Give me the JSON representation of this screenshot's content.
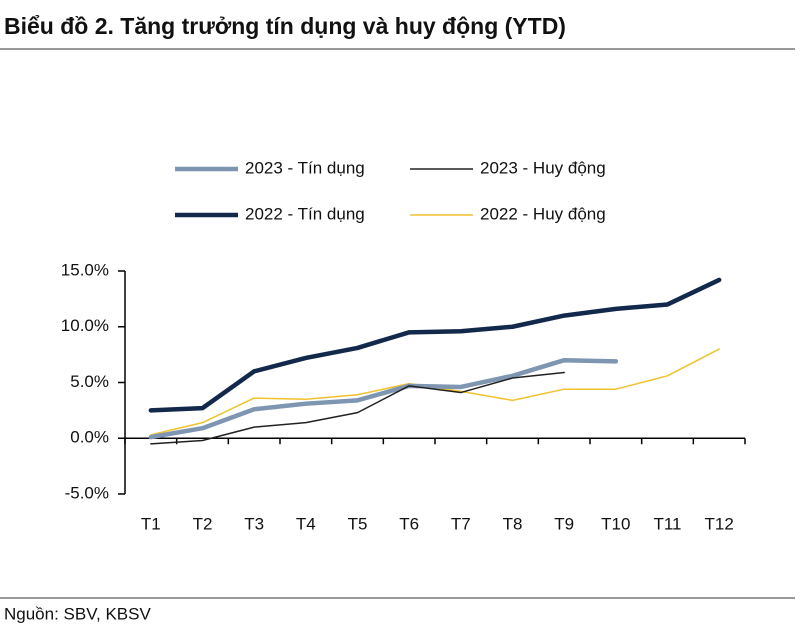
{
  "chart_data": {
    "type": "line",
    "title": "Biểu đồ 2. Tăng trưởng tín dụng và huy động (YTD)",
    "source": "Nguồn: SBV, KBSV",
    "categories": [
      "T1",
      "T2",
      "T3",
      "T4",
      "T5",
      "T6",
      "T7",
      "T8",
      "T9",
      "T10",
      "T11",
      "T12"
    ],
    "series": [
      {
        "name": "2023 - Tín dụng",
        "color": "#7f96b3",
        "line_width": 4.5,
        "values": [
          0.1,
          0.9,
          2.6,
          3.1,
          3.4,
          4.7,
          4.6,
          5.6,
          7.0,
          6.9,
          null,
          null
        ]
      },
      {
        "name": "2023 - Huy động",
        "color": "#222222",
        "line_width": 1.5,
        "values": [
          -0.5,
          -0.2,
          1.0,
          1.4,
          2.3,
          4.7,
          4.1,
          5.4,
          5.9,
          null,
          null,
          null
        ]
      },
      {
        "name": "2022 - Tín dụng",
        "color": "#13294b",
        "line_width": 4.5,
        "values": [
          2.5,
          2.7,
          6.0,
          7.2,
          8.1,
          9.5,
          9.6,
          10.0,
          11.0,
          11.6,
          12.0,
          14.2
        ]
      },
      {
        "name": "2022 - Huy động",
        "color": "#f2c12e",
        "line_width": 1.5,
        "values": [
          0.3,
          1.4,
          3.6,
          3.5,
          3.9,
          4.9,
          4.2,
          3.4,
          4.4,
          4.4,
          5.6,
          8.0
        ]
      }
    ],
    "ylim": [
      -5,
      15
    ],
    "yticks": [
      {
        "value": -5,
        "label": "-5.0%"
      },
      {
        "value": 0,
        "label": "0.0%"
      },
      {
        "value": 5,
        "label": "5.0%"
      },
      {
        "value": 10,
        "label": "10.0%"
      },
      {
        "value": 15,
        "label": "15.0%"
      }
    ],
    "grid": false
  }
}
